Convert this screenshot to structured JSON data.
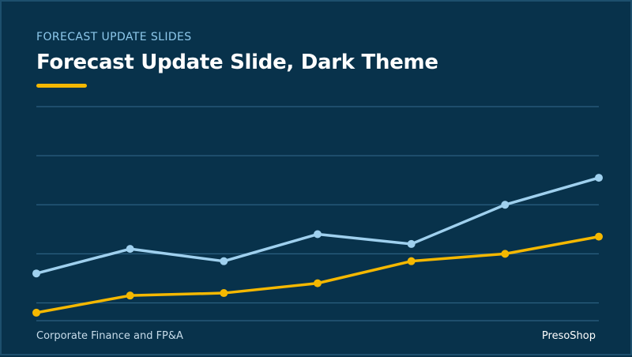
{
  "slide": {
    "eyebrow": "FORECAST UPDATE SLIDES",
    "title": "Forecast Update Slide, Dark Theme",
    "footer_left": "Corporate Finance and FP&A",
    "footer_right": "PresoShop"
  },
  "colors": {
    "background": "#08324b",
    "accent": "#f5b800",
    "series_1": "#9fd0ee",
    "series_2": "#f5b800",
    "gridline": "#2b5f80"
  },
  "chart_data": {
    "type": "line",
    "title": "",
    "xlabel": "",
    "ylabel": "",
    "x": [
      1,
      2,
      3,
      4,
      5,
      6,
      7
    ],
    "ylim": [
      0,
      5
    ],
    "grid": true,
    "legend": "none",
    "series": [
      {
        "values": [
          1.6,
          2.1,
          1.85,
          2.4,
          2.2,
          3.0,
          3.55
        ]
      },
      {
        "values": [
          0.8,
          1.15,
          1.2,
          1.4,
          1.85,
          2.0,
          2.35
        ]
      }
    ]
  }
}
